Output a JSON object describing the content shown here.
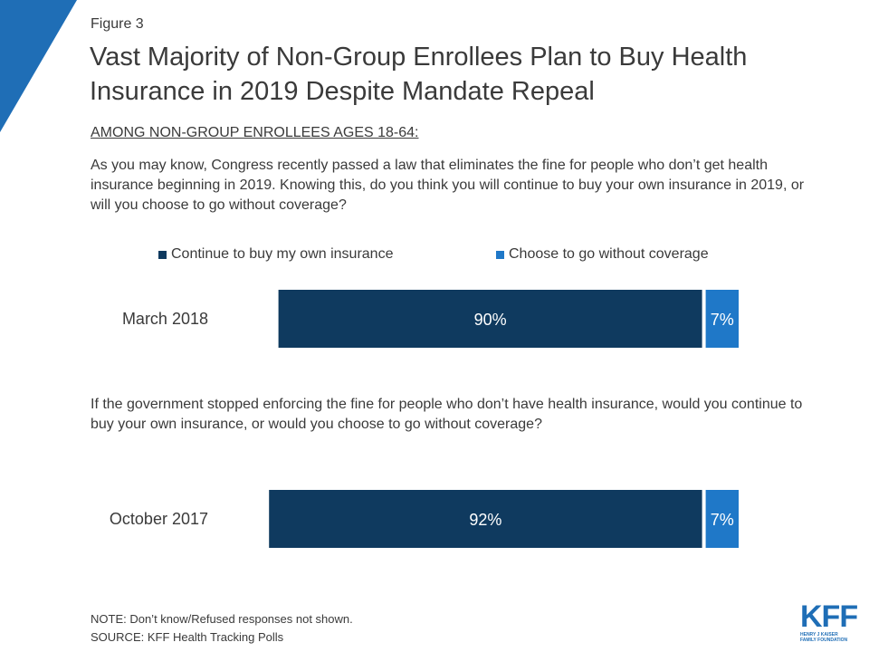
{
  "figure_label": "Figure 3",
  "title": "Vast Majority of Non-Group Enrollees Plan to Buy Health Insurance in 2019 Despite Mandate Repeal",
  "subtitle": "AMONG NON-GROUP ENROLLEES AGES 18-64:",
  "question_1": "As you may know, Congress recently passed a law that eliminates the fine for people who don’t get health insurance beginning in 2019. Knowing this, do you think you will continue to buy your own insurance in 2019, or will you choose to go without coverage?",
  "question_2": "If the government stopped enforcing the fine for people who don’t have health insurance, would you continue to buy your own insurance, or would you choose to go without coverage?",
  "note": "NOTE: Don’t know/Refused responses not shown.",
  "source": "SOURCE: KFF Health Tracking Polls",
  "logo": {
    "mark": "KFF",
    "line1": "HENRY J KAISER",
    "line2": "FAMILY FOUNDATION"
  },
  "colors": {
    "triangle": "#1f6eb6",
    "continue": "#0f3a5f",
    "without": "#1f78c8",
    "bar_label": "#ffffff",
    "text": "#3a3a3a"
  },
  "chart_data": {
    "type": "bar",
    "orientation": "horizontal",
    "stacked": true,
    "legend_position": "top",
    "grid": false,
    "xlim": [
      0,
      100
    ],
    "categories": [
      "March 2018",
      "October 2017"
    ],
    "series": [
      {
        "name": "Continue to buy my own insurance",
        "values": [
          90,
          92
        ],
        "labels": [
          "90%",
          "92%"
        ]
      },
      {
        "name": "Choose to go without coverage",
        "values": [
          7,
          7
        ],
        "labels": [
          "7%",
          "7%"
        ]
      }
    ]
  }
}
